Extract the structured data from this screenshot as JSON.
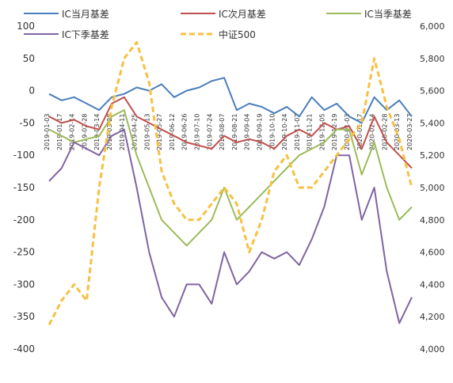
{
  "chart_data": {
    "type": "line",
    "title": "",
    "legend_position": "top",
    "grid": false,
    "x_tick_labels": [
      "2019-01-03",
      "2019-01-17",
      "2019-02-14",
      "2019-02-28",
      "2019-03-14",
      "2019-03-28",
      "2019-04-11",
      "2019-04-25",
      "2019-05-13",
      "2019-05-27",
      "2019-06-12",
      "2019-06-26",
      "2019-07-10",
      "2019-07-24",
      "2019-08-07",
      "2019-08-21",
      "2019-09-04",
      "2019-09-19",
      "2019-10-10",
      "2019-10-24",
      "2019-11-07",
      "2019-11-21",
      "2019-12-05",
      "2019-12-19",
      "2020-01-03",
      "2020-01-17",
      "2020-02-14",
      "2020-02-28",
      "2020-03-13",
      "2020-03-27"
    ],
    "y_left": {
      "min": -400,
      "max": 100,
      "ticks": [
        100,
        50,
        0,
        -50,
        -100,
        -150,
        -200,
        -250,
        -300,
        -350,
        -400
      ]
    },
    "y_right": {
      "min": 4000,
      "max": 6000,
      "ticks": [
        "6,000",
        "5,800",
        "5,600",
        "5,400",
        "5,200",
        "5,000",
        "4,800",
        "4,600",
        "4,400",
        "4,200",
        "4,000"
      ],
      "tick_values": [
        6000,
        5800,
        5600,
        5400,
        5200,
        5000,
        4800,
        4600,
        4400,
        4200,
        4000
      ]
    },
    "series": [
      {
        "name": "IC当月基差",
        "color": "#4a7ebb",
        "axis": "left",
        "style": "solid",
        "values": [
          -5,
          -15,
          -10,
          -20,
          -30,
          -10,
          -5,
          5,
          0,
          10,
          -10,
          0,
          5,
          15,
          20,
          -30,
          -20,
          -25,
          -35,
          -25,
          -40,
          -10,
          -30,
          -20,
          -40,
          -50,
          -10,
          -30,
          -15,
          -40
        ]
      },
      {
        "name": "IC次月基差",
        "color": "#c0504d",
        "axis": "left",
        "style": "solid",
        "values": [
          -40,
          -50,
          -45,
          -55,
          -60,
          -20,
          -10,
          -40,
          -50,
          -60,
          -70,
          -80,
          -85,
          -90,
          -70,
          -80,
          -75,
          -80,
          -90,
          -70,
          -60,
          -70,
          -50,
          -60,
          -55,
          -90,
          -40,
          -80,
          -100,
          -120
        ]
      },
      {
        "name": "IC当季基差",
        "color": "#9bbb59",
        "axis": "left",
        "style": "solid",
        "values": [
          -60,
          -70,
          -80,
          -75,
          -70,
          -40,
          -30,
          -100,
          -150,
          -200,
          -220,
          -240,
          -220,
          -200,
          -150,
          -200,
          -180,
          -160,
          -140,
          -120,
          -100,
          -90,
          -80,
          -60,
          -60,
          -130,
          -80,
          -150,
          -200,
          -180
        ]
      },
      {
        "name": "IC下季基差",
        "color": "#8064a2",
        "axis": "left",
        "style": "solid",
        "values": [
          -140,
          -120,
          -80,
          -90,
          -100,
          -70,
          -60,
          -150,
          -250,
          -320,
          -350,
          -300,
          -300,
          -330,
          -250,
          -300,
          -280,
          -250,
          -260,
          -250,
          -270,
          -230,
          -180,
          -100,
          -100,
          -200,
          -150,
          -280,
          -360,
          -320
        ]
      },
      {
        "name": "中证500",
        "color": "#f6c142",
        "axis": "right",
        "style": "dashed",
        "values": [
          4150,
          4300,
          4400,
          4300,
          5000,
          5500,
          5800,
          5900,
          5650,
          5100,
          4900,
          4800,
          4800,
          4900,
          5000,
          4900,
          4600,
          4800,
          5100,
          5200,
          5000,
          5000,
          5100,
          5200,
          5300,
          5400,
          5800,
          5500,
          5300,
          5000
        ]
      }
    ]
  }
}
